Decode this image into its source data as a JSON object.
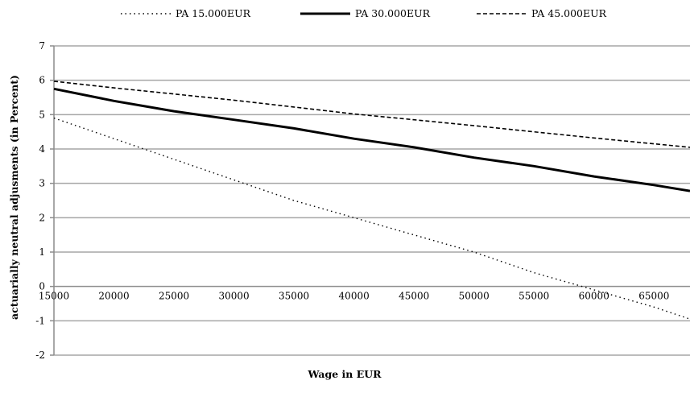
{
  "chart_data": {
    "type": "line",
    "title": "",
    "xlabel": "Wage in EUR",
    "ylabel": "actuarially neutral adjusments (in Percent)",
    "xlim": [
      15000,
      68000
    ],
    "ylim": [
      -2,
      7
    ],
    "x_ticks": [
      15000,
      20000,
      25000,
      30000,
      35000,
      40000,
      45000,
      50000,
      55000,
      60000,
      65000
    ],
    "y_ticks": [
      -2,
      -1,
      0,
      1,
      2,
      3,
      4,
      5,
      6,
      7
    ],
    "grid": "horizontal",
    "legend_position": "top",
    "x": [
      15000,
      20000,
      25000,
      30000,
      35000,
      40000,
      45000,
      50000,
      55000,
      60000,
      65000,
      68000
    ],
    "series": [
      {
        "name": "PA 15.000EUR",
        "style": "dotted",
        "values": [
          4.9,
          4.3,
          3.7,
          3.1,
          2.5,
          2.0,
          1.5,
          1.0,
          0.4,
          -0.1,
          -0.6,
          -0.95
        ]
      },
      {
        "name": "PA 30.000EUR",
        "style": "solid",
        "values": [
          5.75,
          5.4,
          5.1,
          4.85,
          4.6,
          4.3,
          4.05,
          3.75,
          3.5,
          3.2,
          2.95,
          2.78
        ]
      },
      {
        "name": "PA 45.000EUR",
        "style": "dashed",
        "values": [
          5.97,
          5.78,
          5.6,
          5.42,
          5.22,
          5.02,
          4.85,
          4.68,
          4.5,
          4.32,
          4.15,
          4.05
        ]
      }
    ],
    "colors": {
      "line": "#000000",
      "grid": "#a6a6a6",
      "axis": "#8c8c8c"
    }
  }
}
